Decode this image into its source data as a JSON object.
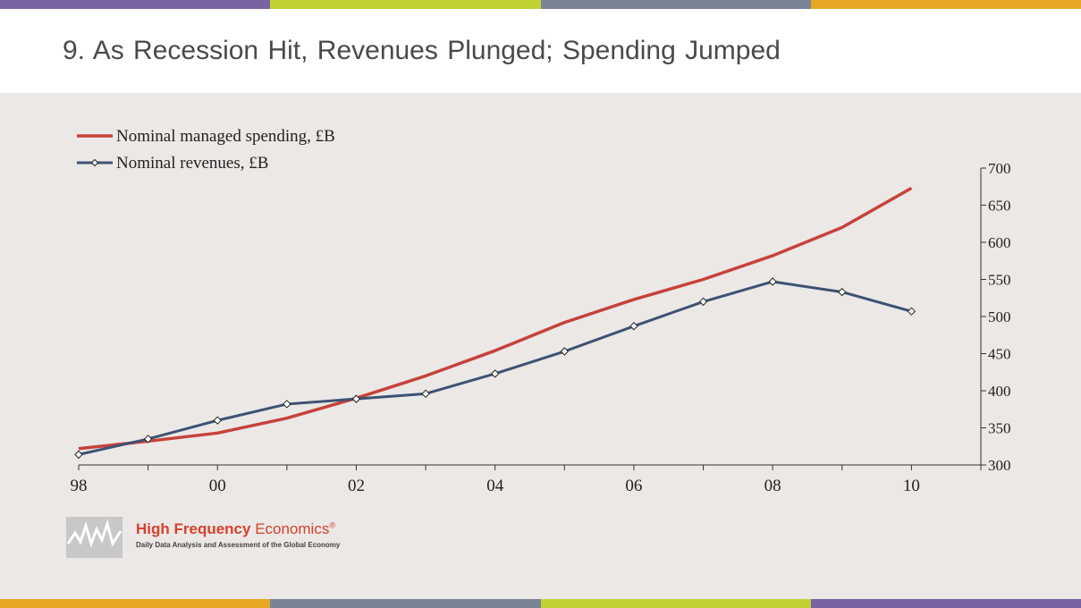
{
  "colors": {
    "stripes": [
      "#7b62a3",
      "#c2d133",
      "#7a8497",
      "#e6a723"
    ],
    "stripes_bottom": [
      "#e6a723",
      "#7a8497",
      "#c2d133",
      "#7b62a3"
    ],
    "panel_bg": "#ebe8e6",
    "spending_line": "#c6423a",
    "revenue_line": "#3d5273"
  },
  "slide": {
    "title": "9.  As Recession Hit, Revenues Plunged; Spending Jumped"
  },
  "logo": {
    "name_bold": "High Frequency ",
    "name_light": "Economics",
    "registered": "®",
    "tagline": "Daily Data Analysis and Assessment of the Global Economy"
  },
  "chart_data": {
    "type": "line",
    "x": [
      1998,
      1999,
      2000,
      2001,
      2002,
      2003,
      2004,
      2005,
      2006,
      2007,
      2008,
      2009,
      2010
    ],
    "x_tick_labels": [
      "98",
      "00",
      "02",
      "04",
      "06",
      "08",
      "10"
    ],
    "x_tick_label_years": [
      1998,
      2000,
      2002,
      2004,
      2006,
      2008,
      2010
    ],
    "xlim": [
      1998,
      2011
    ],
    "ylim": [
      300,
      700
    ],
    "y_ticks": [
      300,
      350,
      400,
      450,
      500,
      550,
      600,
      650,
      700
    ],
    "y_axis_side": "right",
    "grid": false,
    "legend_position": "top-left",
    "series": [
      {
        "name": "Nominal managed spending, £B",
        "marker": "none",
        "values": [
          322,
          332,
          343,
          363,
          390,
          420,
          454,
          492,
          523,
          550,
          582,
          620,
          673
        ]
      },
      {
        "name": "Nominal revenues, £B",
        "marker": "diamond",
        "values": [
          314,
          335,
          360,
          382,
          389,
          396,
          423,
          453,
          487,
          520,
          547,
          533,
          507
        ]
      }
    ]
  }
}
